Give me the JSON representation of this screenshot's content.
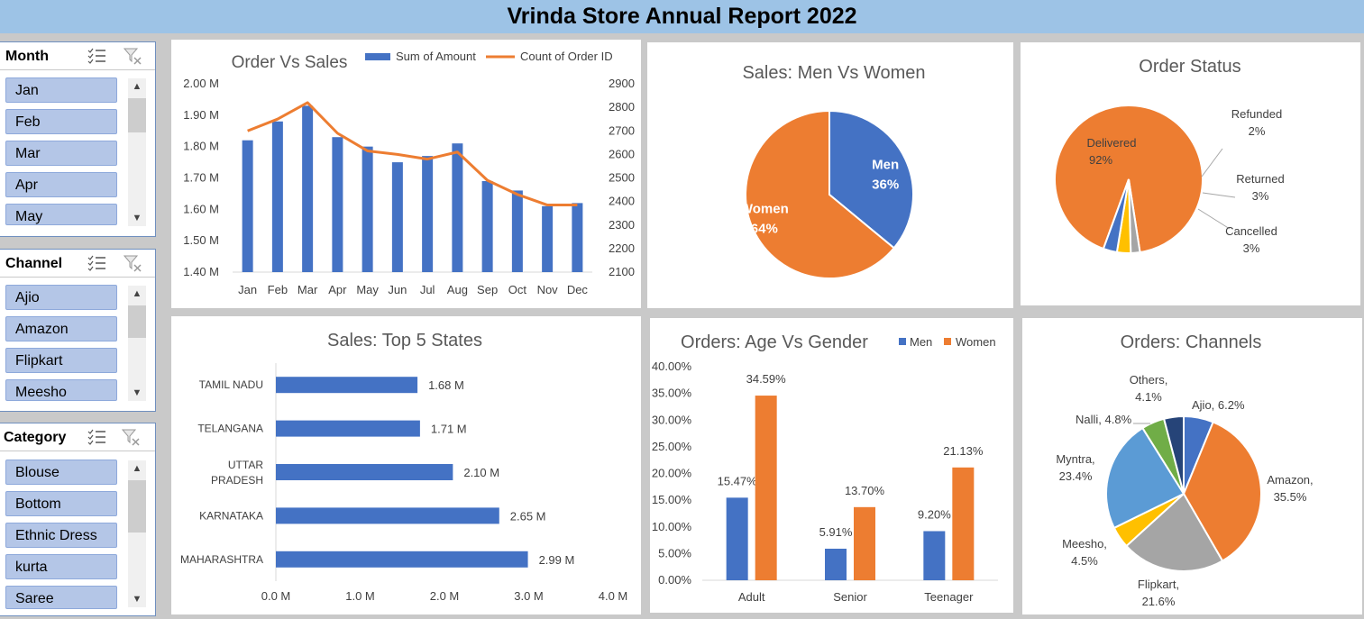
{
  "report_title": "Vrinda Store Annual Report 2022",
  "slicers": {
    "month": {
      "title": "Month",
      "items": [
        "Jan",
        "Feb",
        "Mar",
        "Apr",
        "May"
      ]
    },
    "channel": {
      "title": "Channel",
      "items": [
        "Ajio",
        "Amazon",
        "Flipkart",
        "Meesho"
      ]
    },
    "category": {
      "title": "Category",
      "items": [
        "Blouse",
        "Bottom",
        "Ethnic Dress",
        "kurta",
        "Saree"
      ]
    }
  },
  "chart_data": [
    {
      "id": "order_vs_sales",
      "type": "bar",
      "title": "Order Vs Sales",
      "categories": [
        "Jan",
        "Feb",
        "Mar",
        "Apr",
        "May",
        "Jun",
        "Jul",
        "Aug",
        "Sep",
        "Oct",
        "Nov",
        "Dec"
      ],
      "series": [
        {
          "name": "Sum of Amount",
          "type": "bar",
          "axis": "left",
          "color": "#4472c4",
          "values": [
            1.82,
            1.88,
            1.93,
            1.83,
            1.8,
            1.75,
            1.77,
            1.81,
            1.69,
            1.66,
            1.61,
            1.62
          ]
        },
        {
          "name": "Count of Order ID",
          "type": "line",
          "axis": "right",
          "color": "#ed7d31",
          "values": [
            2700,
            2750,
            2820,
            2690,
            2615,
            2600,
            2580,
            2610,
            2490,
            2430,
            2385,
            2385
          ]
        }
      ],
      "y_left": {
        "min": 1.4,
        "max": 2.0,
        "ticks": [
          "2.00 M",
          "1.90 M",
          "1.80 M",
          "1.70 M",
          "1.60 M",
          "1.50 M",
          "1.40 M"
        ]
      },
      "y_right": {
        "min": 2100,
        "max": 2900,
        "ticks": [
          "2900",
          "2800",
          "2700",
          "2600",
          "2500",
          "2400",
          "2300",
          "2200",
          "2100"
        ]
      },
      "legend": "top"
    },
    {
      "id": "men_vs_women",
      "type": "pie",
      "title": "Sales: Men Vs Women",
      "slices": [
        {
          "label": "Men",
          "value": 36,
          "text": "36%",
          "color": "#4472c4"
        },
        {
          "label": "Women",
          "value": 64,
          "text": "64%",
          "color": "#ed7d31"
        }
      ]
    },
    {
      "id": "order_status",
      "type": "pie",
      "title": "Order Status",
      "slices": [
        {
          "label": "Delivered",
          "value": 92,
          "text": "92%",
          "color": "#ed7d31"
        },
        {
          "label": "Refunded",
          "value": 2,
          "text": "2%",
          "color": "#a5a5a5"
        },
        {
          "label": "Returned",
          "value": 3,
          "text": "3%",
          "color": "#ffc000"
        },
        {
          "label": "Cancelled",
          "value": 3,
          "text": "3%",
          "color": "#4472c4"
        }
      ]
    },
    {
      "id": "top_states",
      "type": "bar",
      "orientation": "horizontal",
      "title": "Sales: Top 5 States",
      "categories": [
        "TAMIL NADU",
        "TELANGANA",
        "UTTAR PRADESH",
        "KARNATAKA",
        "MAHARASHTRA"
      ],
      "values": [
        1.68,
        1.71,
        2.1,
        2.65,
        2.99
      ],
      "value_labels": [
        "1.68 M",
        "1.71 M",
        "2.10 M",
        "2.65 M",
        "2.99 M"
      ],
      "color": "#4472c4",
      "xlim": [
        0,
        4
      ],
      "x_ticks": [
        "0.0 M",
        "1.0 M",
        "2.0 M",
        "3.0 M",
        "4.0 M"
      ]
    },
    {
      "id": "age_vs_gender",
      "type": "bar",
      "title": "Orders: Age Vs Gender",
      "categories": [
        "Adult",
        "Senior",
        "Teenager"
      ],
      "series": [
        {
          "name": "Men",
          "color": "#4472c4",
          "values": [
            15.47,
            5.91,
            9.2
          ],
          "labels": [
            "15.47%",
            "5.91%",
            "9.20%"
          ]
        },
        {
          "name": "Women",
          "color": "#ed7d31",
          "values": [
            34.59,
            13.7,
            21.13
          ],
          "labels": [
            "34.59%",
            "13.70%",
            "21.13%"
          ]
        }
      ],
      "ylim": [
        0,
        40
      ],
      "y_ticks": [
        "40.00%",
        "35.00%",
        "30.00%",
        "25.00%",
        "20.00%",
        "15.00%",
        "10.00%",
        "5.00%",
        "0.00%"
      ],
      "legend": "top-right"
    },
    {
      "id": "channels",
      "type": "pie",
      "title": "Orders: Channels",
      "slices": [
        {
          "label": "Ajio",
          "value": 6.2,
          "text": "Ajio, 6.2%",
          "color": "#4472c4"
        },
        {
          "label": "Amazon",
          "value": 35.5,
          "text": "Amazon, 35.5%",
          "color": "#ed7d31"
        },
        {
          "label": "Flipkart",
          "value": 21.6,
          "text": "Flipkart, 21.6%",
          "color": "#a5a5a5"
        },
        {
          "label": "Meesho",
          "value": 4.5,
          "text": "Meesho, 4.5%",
          "color": "#ffc000"
        },
        {
          "label": "Myntra",
          "value": 23.4,
          "text": "Myntra, 23.4%",
          "color": "#5b9bd5"
        },
        {
          "label": "Nalli",
          "value": 4.8,
          "text": "Nalli, 4.8%",
          "color": "#70ad47"
        },
        {
          "label": "Others",
          "value": 4.1,
          "text": "Others, 4.1%",
          "color": "#264478"
        }
      ]
    }
  ]
}
